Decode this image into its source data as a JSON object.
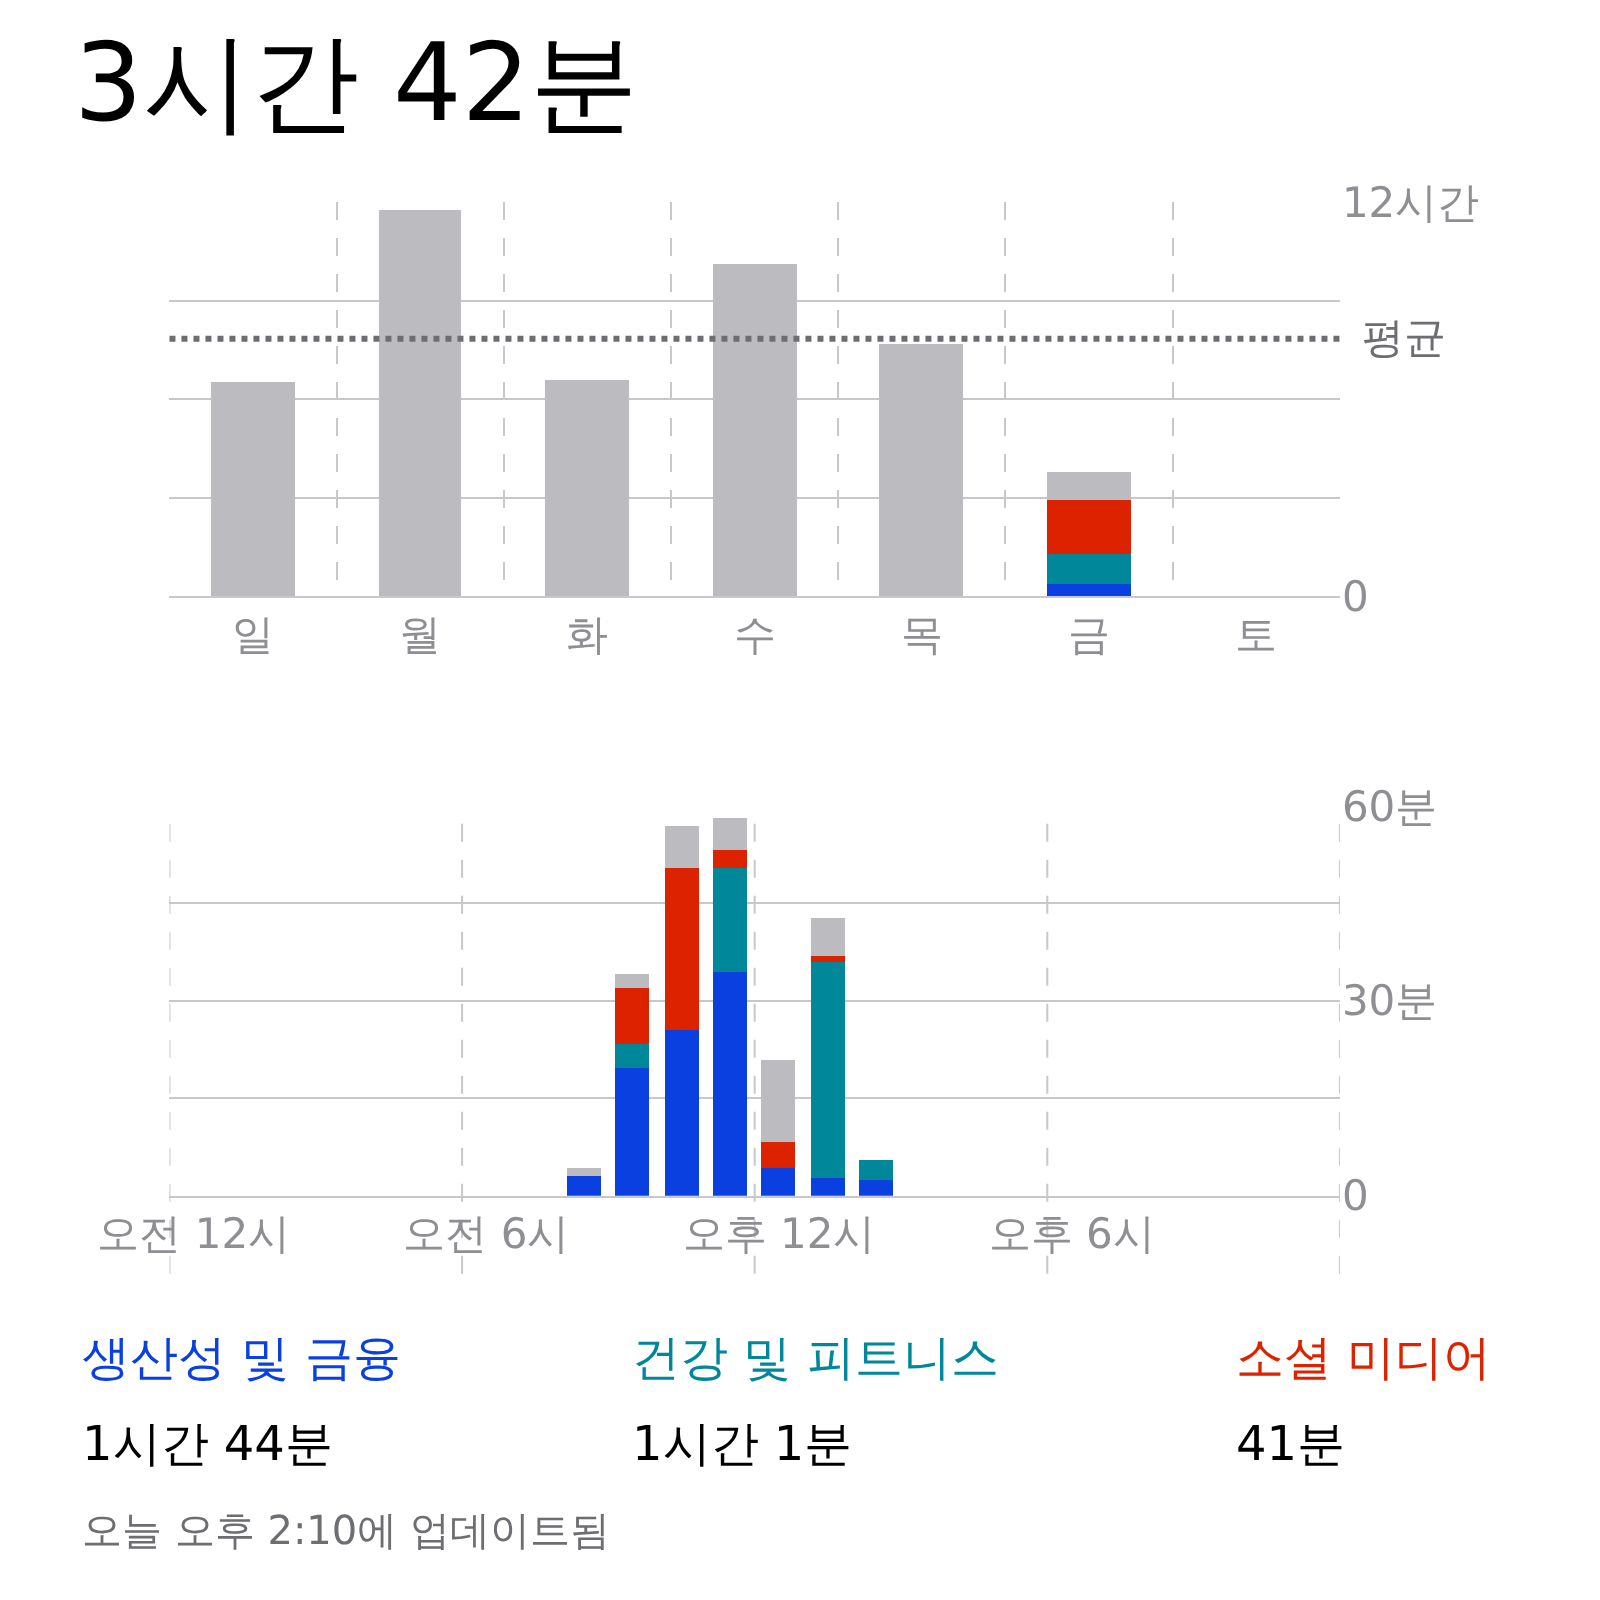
{
  "chart_data": [
    {
      "type": "bar",
      "title": "3시간 42분",
      "stacked": true,
      "categories": [
        "일",
        "월",
        "화",
        "수",
        "목",
        "금",
        "토"
      ],
      "series": [
        {
          "color": "#0a3fe0",
          "values": [
            null,
            null,
            null,
            null,
            null,
            0.33,
            null
          ]
        },
        {
          "color": "#00889a",
          "values": [
            null,
            null,
            null,
            null,
            null,
            0.92,
            null
          ]
        },
        {
          "color": "#dd2200",
          "values": [
            null,
            null,
            null,
            null,
            null,
            1.65,
            null
          ]
        },
        {
          "color": "#bcbcc0",
          "values": [
            6.5,
            11.75,
            6.6,
            10.1,
            7.7,
            0.85,
            null
          ]
        }
      ],
      "ylim": [
        0,
        12
      ],
      "yticks": [
        0,
        {
          "value": 3,
          "label": null
        },
        {
          "value": 6,
          "label": null
        },
        {
          "value": 9,
          "label": null
        },
        {
          "value": 12,
          "label": "12시간"
        }
      ],
      "ref_lines": [
        {
          "axis": "y",
          "value": 7.85,
          "label": "평균",
          "color": "#6e6e72",
          "line_style": "dotted"
        }
      ],
      "grid": true
    },
    {
      "type": "bar",
      "stacked": true,
      "categories": [
        "오전 12시",
        null,
        null,
        null,
        null,
        null,
        "오전 6시",
        null,
        null,
        null,
        null,
        null,
        "오후 12시",
        null,
        null,
        null,
        null,
        null,
        "오후 6시",
        null,
        null,
        null,
        null,
        null
      ],
      "series": [
        {
          "name": "생산성 및 금융",
          "color": "#0a3fe0",
          "values": [
            null,
            null,
            null,
            null,
            null,
            null,
            null,
            null,
            3.0,
            19.8,
            25.4,
            34.5,
            4.3,
            2.7,
            2.4,
            null,
            null,
            null,
            null,
            null,
            null,
            null,
            null,
            null
          ]
        },
        {
          "name": "건강 및 피트니스",
          "color": "#00889a",
          "values": [
            null,
            null,
            null,
            null,
            null,
            null,
            null,
            null,
            null,
            3.5,
            null,
            16.0,
            null,
            33.2,
            3.1,
            null,
            null,
            null,
            null,
            null,
            null,
            null,
            null,
            null
          ]
        },
        {
          "name": "소셜 미디어",
          "color": "#dd2200",
          "values": [
            null,
            null,
            null,
            null,
            null,
            null,
            null,
            null,
            null,
            8.8,
            25.1,
            2.7,
            3.9,
            0.9,
            null,
            null,
            null,
            null,
            null,
            null,
            null,
            null,
            null,
            null
          ]
        },
        {
          "color": "#bcbcc0",
          "values": [
            null,
            null,
            null,
            null,
            null,
            null,
            null,
            null,
            1.4,
            2.2,
            6.5,
            4.9,
            12.6,
            5.9,
            null,
            null,
            null,
            null,
            null,
            null,
            null,
            null,
            null,
            null
          ]
        }
      ],
      "ylim": [
        0,
        60
      ],
      "yticks": [
        0,
        {
          "value": 15,
          "label": null
        },
        {
          "value": 30,
          "label": "30분"
        },
        {
          "value": 45,
          "label": null
        },
        {
          "value": 60,
          "label": "60분"
        }
      ],
      "grid": true,
      "annotations": [
        "1시간 44분",
        "1시간 1분",
        "41분",
        "오늘 오후 2:10에 업데이트됨"
      ]
    }
  ]
}
